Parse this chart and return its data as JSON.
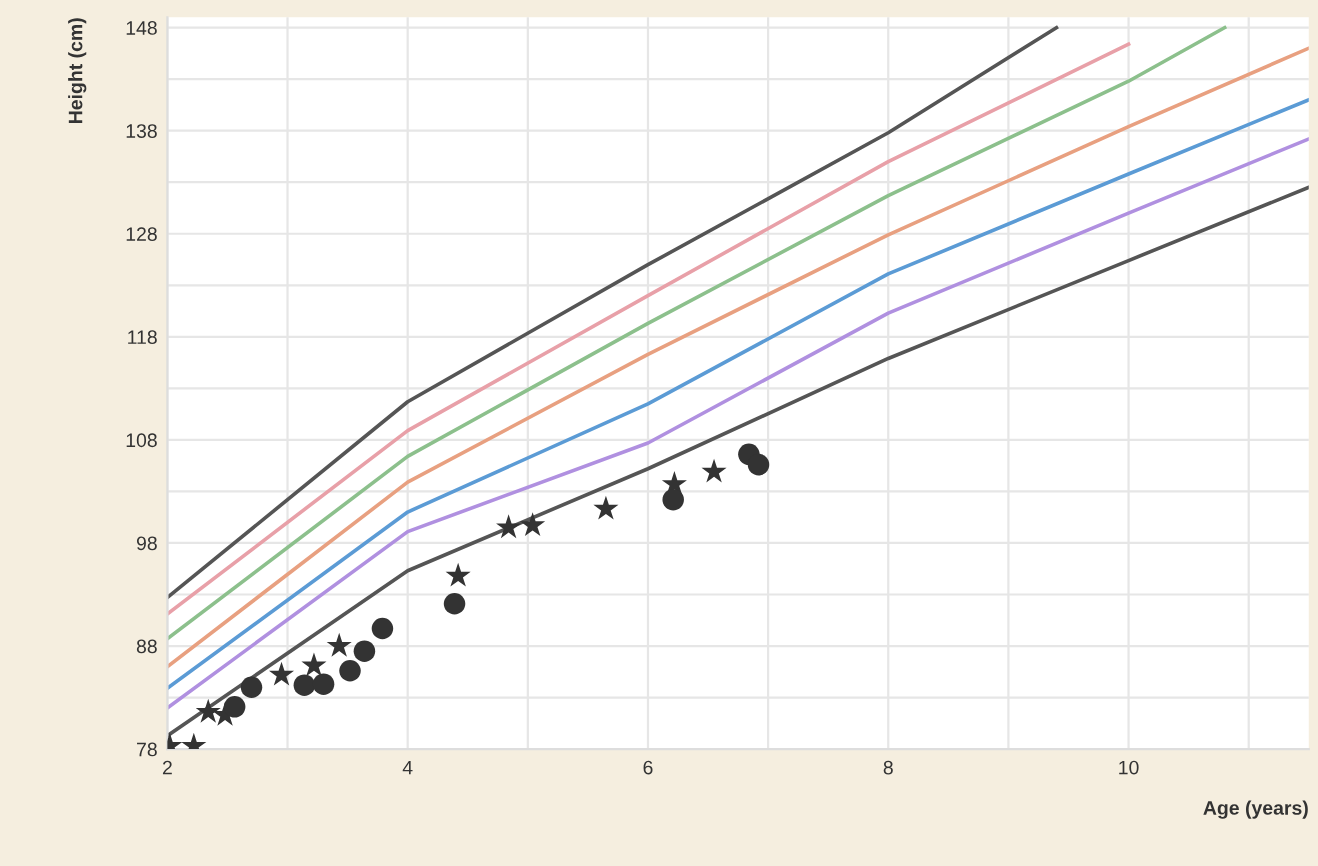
{
  "chart_data": {
    "type": "line",
    "xlabel": "Age (years)",
    "ylabel": "Height (cm)",
    "xlim": [
      2,
      11.5
    ],
    "ylim": [
      78,
      149
    ],
    "xticks": [
      2,
      {
        "value": 3,
        "label": null
      },
      4,
      {
        "value": 5,
        "label": null
      },
      6,
      {
        "value": 7,
        "label": null
      },
      8,
      {
        "value": 9,
        "label": null
      },
      10,
      {
        "value": 11,
        "label": null
      }
    ],
    "yticks": [
      78,
      {
        "value": 83,
        "label": null
      },
      88,
      {
        "value": 93,
        "label": null
      },
      98,
      {
        "value": 103,
        "label": null
      },
      108,
      {
        "value": 113,
        "label": null
      },
      118,
      {
        "value": 123,
        "label": null
      },
      128,
      {
        "value": 133,
        "label": null
      },
      138,
      {
        "value": 143,
        "label": null
      },
      148
    ],
    "grid": true,
    "legend": false,
    "series": [
      {
        "color": "#555555",
        "x": [
          2,
          4,
          6,
          8,
          9.4
        ],
        "values": [
          92.7,
          111.7,
          125,
          137.8,
          148
        ]
      },
      {
        "color": "#e8a0a8",
        "x": [
          2,
          4,
          6,
          8,
          10
        ],
        "values": [
          91.1,
          108.9,
          122,
          135,
          146.4
        ]
      },
      {
        "color": "#8cc08c",
        "x": [
          2,
          4,
          6,
          8,
          10,
          10.8
        ],
        "values": [
          88.7,
          106.4,
          119.3,
          131.7,
          142.8,
          148
        ]
      },
      {
        "color": "#e8a080",
        "x": [
          2,
          4,
          6,
          8,
          10,
          11.5
        ],
        "values": [
          86,
          103.9,
          116.3,
          127.9,
          138.4,
          146
        ]
      },
      {
        "color": "#5b9bd5",
        "x": [
          2,
          4,
          6,
          8,
          10,
          11.5
        ],
        "values": [
          83.9,
          101,
          111.5,
          124.1,
          133.8,
          141
        ]
      },
      {
        "color": "#b090e0",
        "x": [
          2,
          4,
          6,
          8,
          10,
          11.5
        ],
        "values": [
          82,
          99.1,
          107.7,
          120.3,
          130,
          137.2
        ]
      },
      {
        "color": "#555555",
        "x": [
          2,
          4,
          6,
          8,
          10,
          11.5
        ],
        "values": [
          79.3,
          95.3,
          105.2,
          115.9,
          125.4,
          132.5
        ]
      },
      {
        "type": "scatter",
        "marker": "star",
        "color": "#333333",
        "x": [
          2.02,
          2.22,
          2.34,
          2.48,
          2.95,
          3.22,
          3.43,
          4.42,
          4.84,
          5.04,
          5.65,
          6.22,
          6.55
        ],
        "values": [
          78.3,
          78.3,
          81.6,
          81.3,
          85.2,
          86.1,
          88.0,
          94.8,
          99.5,
          99.7,
          101.3,
          103.7,
          104.9
        ]
      },
      {
        "type": "scatter",
        "marker": "circle",
        "color": "#333333",
        "x": [
          2.56,
          2.7,
          3.14,
          3.3,
          3.52,
          3.64,
          3.79,
          4.39,
          6.21,
          6.84,
          6.92
        ],
        "values": [
          82.1,
          84.0,
          84.2,
          84.3,
          85.6,
          87.5,
          89.7,
          92.1,
          102.2,
          106.6,
          105.6
        ]
      }
    ]
  }
}
